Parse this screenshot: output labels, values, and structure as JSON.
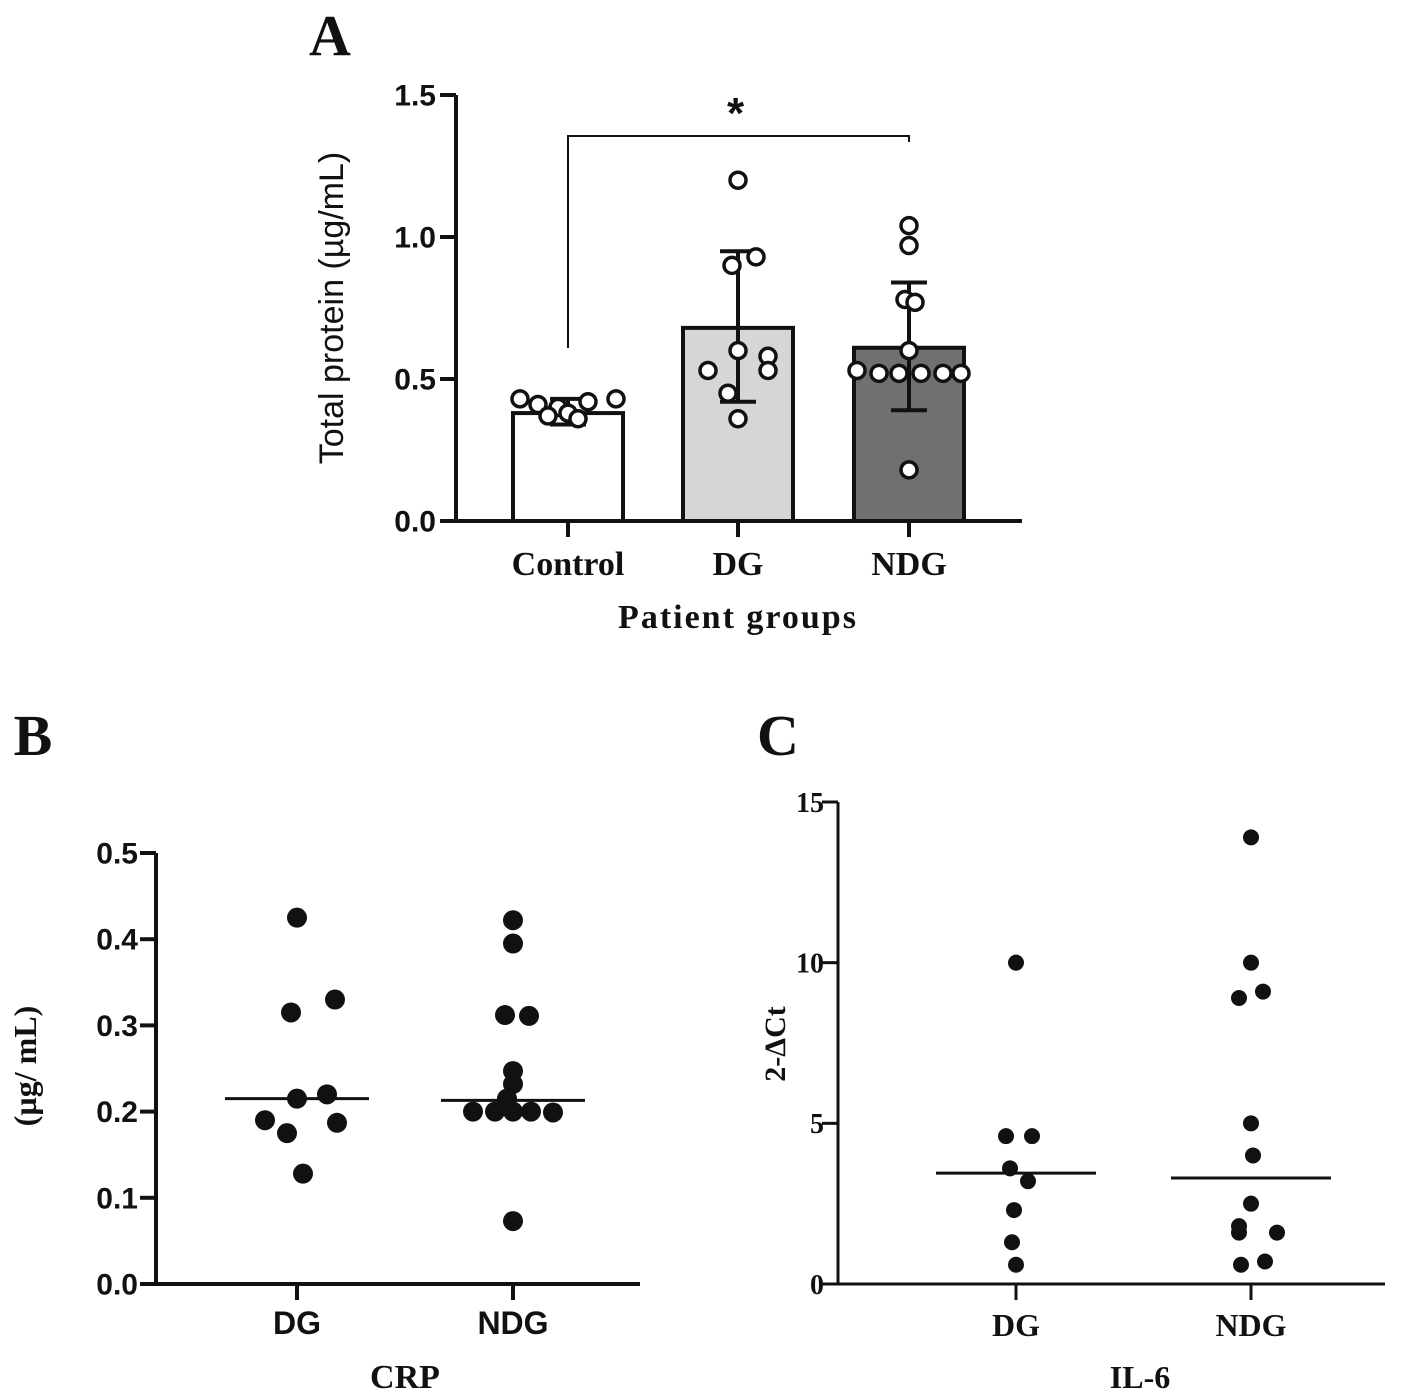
{
  "panel_labels": [
    "A",
    "B",
    "C"
  ],
  "chart_data": [
    {
      "panel": "A",
      "type": "bar",
      "title": "",
      "xlabel": "Patient groups",
      "ylabel": "Total protein (µg/mL)",
      "ylim": [
        0,
        1.5
      ],
      "yticks": [
        "0.0",
        "0.5",
        "1.0",
        "1.5"
      ],
      "categories": [
        "Control",
        "DG",
        "NDG"
      ],
      "values": [
        0.38,
        0.68,
        0.61
      ],
      "error": [
        {
          "low": 0.34,
          "high": 0.43
        },
        {
          "low": 0.42,
          "high": 0.95
        },
        {
          "low": 0.39,
          "high": 0.84
        }
      ],
      "bar_colors": [
        "#ffffff",
        "#d6d6d6",
        "#707070"
      ],
      "points": [
        [
          0.43,
          0.41,
          0.4,
          0.37,
          0.38,
          0.36,
          0.42,
          0.43
        ],
        [
          1.2,
          0.93,
          0.9,
          0.6,
          0.58,
          0.53,
          0.53,
          0.45,
          0.36
        ],
        [
          1.04,
          0.97,
          0.78,
          0.77,
          0.6,
          0.53,
          0.52,
          0.52,
          0.52,
          0.52,
          0.52,
          0.18
        ]
      ],
      "significance": {
        "from": "Control",
        "to": "NDG",
        "label": "*"
      }
    },
    {
      "panel": "B",
      "type": "scatter",
      "title": "",
      "xlabel": "CRP",
      "ylabel": "(µg/ mL)",
      "ylim": [
        0,
        0.5
      ],
      "yticks": [
        "0.0",
        "0.1",
        "0.2",
        "0.3",
        "0.4",
        "0.5"
      ],
      "categories": [
        "DG",
        "NDG"
      ],
      "medians": [
        0.215,
        0.213
      ],
      "points": [
        [
          0.425,
          0.33,
          0.315,
          0.22,
          0.215,
          0.19,
          0.187,
          0.175,
          0.128
        ],
        [
          0.422,
          0.395,
          0.312,
          0.311,
          0.247,
          0.232,
          0.215,
          0.2,
          0.2,
          0.2,
          0.2,
          0.199,
          0.073
        ]
      ]
    },
    {
      "panel": "C",
      "type": "scatter",
      "title": "",
      "xlabel": "IL-6",
      "ylabel": "2-ΔCt",
      "ylim": [
        0,
        15
      ],
      "yticks": [
        "0",
        "5",
        "10",
        "15"
      ],
      "categories": [
        "DG",
        "NDG"
      ],
      "medians": [
        3.45,
        3.3
      ],
      "points": [
        [
          10.0,
          4.6,
          4.6,
          3.6,
          3.2,
          2.3,
          1.3,
          0.6
        ],
        [
          13.9,
          10.0,
          9.1,
          8.9,
          5.0,
          4.0,
          2.5,
          1.8,
          1.6,
          1.6,
          0.7,
          0.6
        ]
      ]
    }
  ]
}
